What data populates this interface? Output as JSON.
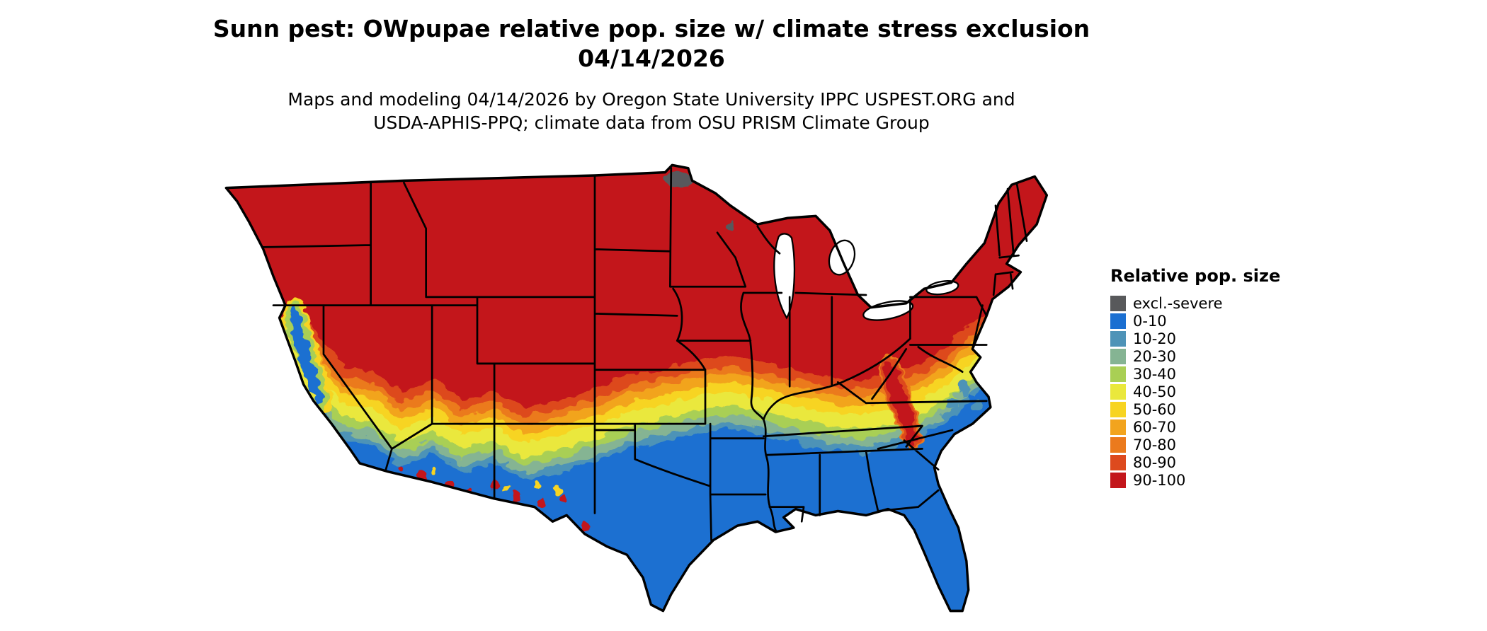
{
  "header": {
    "title_line1": "Sunn pest: OWpupae relative pop. size w/ climate stress exclusion",
    "title_line2": "04/14/2026",
    "subtitle_line1": "Maps and modeling 04/14/2026 by Oregon State University IPPC USPEST.ORG and",
    "subtitle_line2": "USDA-APHIS-PPQ; climate data from OSU PRISM Climate Group"
  },
  "legend": {
    "title": "Relative pop. size",
    "items": [
      {
        "key": "excl",
        "label": "excl.-severe",
        "color": "#58595b"
      },
      {
        "key": "b0",
        "label": "0-10",
        "color": "#1b6fd1"
      },
      {
        "key": "b10",
        "label": "10-20",
        "color": "#4e93b7"
      },
      {
        "key": "b20",
        "label": "20-30",
        "color": "#85b493"
      },
      {
        "key": "b30",
        "label": "30-40",
        "color": "#a9cf54"
      },
      {
        "key": "b40",
        "label": "40-50",
        "color": "#eae83c"
      },
      {
        "key": "b50",
        "label": "50-60",
        "color": "#f7d421"
      },
      {
        "key": "b60",
        "label": "60-70",
        "color": "#f2a41e"
      },
      {
        "key": "b70",
        "label": "70-80",
        "color": "#eb7a1d"
      },
      {
        "key": "b80",
        "label": "80-90",
        "color": "#dd4a1e"
      },
      {
        "key": "b90",
        "label": "90-100",
        "color": "#c3161b"
      }
    ]
  }
}
